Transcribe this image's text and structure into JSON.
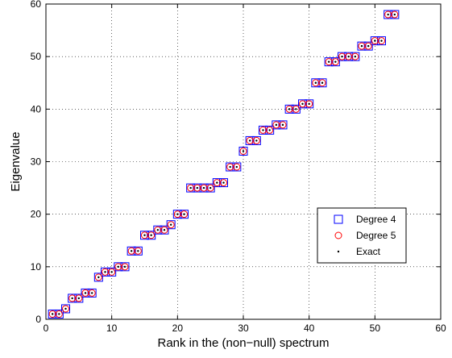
{
  "chart_data": {
    "type": "scatter",
    "title": "",
    "xlabel": "Rank in the (non−null) spectrum",
    "ylabel": "Eigenvalue",
    "xlim": [
      0,
      60
    ],
    "ylim": [
      0,
      60
    ],
    "xticks": [
      "0",
      "10",
      "20",
      "30",
      "40",
      "50",
      "60"
    ],
    "yticks": [
      "0",
      "10",
      "20",
      "30",
      "40",
      "50",
      "60"
    ],
    "grid": true,
    "legend_position": "lower-right",
    "x": [
      1,
      2,
      3,
      4,
      5,
      6,
      7,
      8,
      9,
      10,
      11,
      12,
      13,
      14,
      15,
      16,
      17,
      18,
      19,
      20,
      21,
      22,
      23,
      24,
      25,
      26,
      27,
      28,
      29,
      30,
      31,
      32,
      33,
      34,
      35,
      36,
      37,
      38,
      39,
      40,
      41,
      42,
      43,
      44,
      45,
      46,
      47,
      48,
      49,
      50,
      51,
      52,
      53
    ],
    "series": [
      {
        "name": "Degree 4",
        "marker": "square",
        "color": "#0000ff",
        "values": [
          1,
          1,
          2,
          4,
          4,
          5,
          5,
          8,
          9,
          9,
          10,
          10,
          13,
          13,
          16,
          16,
          17,
          17,
          18,
          20,
          20,
          25,
          25,
          25,
          25,
          26,
          26,
          29,
          29,
          32,
          34,
          34,
          36,
          36,
          37,
          37,
          40,
          40,
          41,
          41,
          45,
          45,
          49,
          49,
          50,
          50,
          50,
          52,
          52,
          53,
          53,
          58,
          58
        ]
      },
      {
        "name": "Degree 5",
        "marker": "circle",
        "color": "#ff0000",
        "values": [
          1,
          1,
          2,
          4,
          4,
          5,
          5,
          8,
          9,
          9,
          10,
          10,
          13,
          13,
          16,
          16,
          17,
          17,
          18,
          20,
          20,
          25,
          25,
          25,
          25,
          26,
          26,
          29,
          29,
          32,
          34,
          34,
          36,
          36,
          37,
          37,
          40,
          40,
          41,
          41,
          45,
          45,
          49,
          49,
          50,
          50,
          50,
          52,
          52,
          53,
          53,
          58,
          58
        ]
      },
      {
        "name": "Exact",
        "marker": "dot",
        "color": "#000000",
        "values": [
          1,
          1,
          2,
          4,
          4,
          5,
          5,
          8,
          9,
          9,
          10,
          10,
          13,
          13,
          16,
          16,
          17,
          17,
          18,
          20,
          20,
          25,
          25,
          25,
          25,
          26,
          26,
          29,
          29,
          32,
          34,
          34,
          36,
          36,
          37,
          37,
          40,
          40,
          41,
          41,
          45,
          45,
          49,
          49,
          50,
          50,
          50,
          52,
          52,
          53,
          53,
          58,
          58
        ]
      }
    ]
  }
}
